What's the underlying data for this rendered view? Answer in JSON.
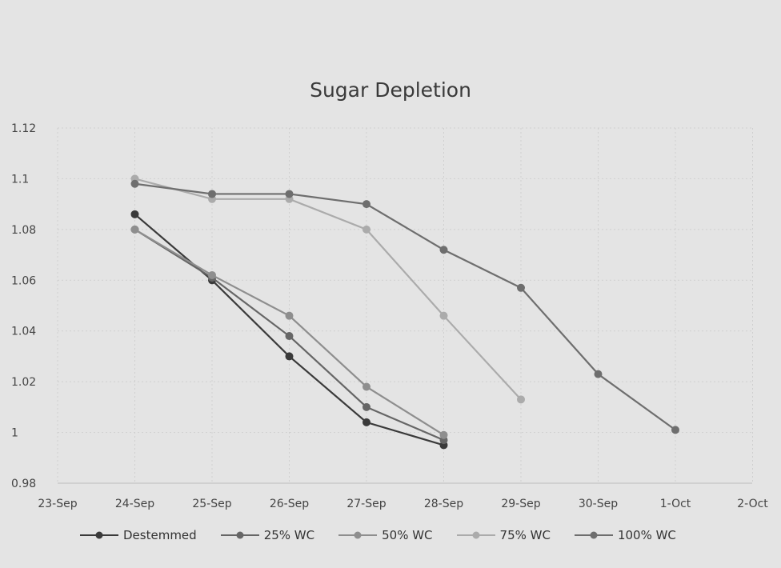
{
  "chart_data": {
    "type": "line",
    "title": "Sugar Depletion",
    "xlabel": "",
    "ylabel": "",
    "categories": [
      "23-Sep",
      "24-Sep",
      "25-Sep",
      "26-Sep",
      "27-Sep",
      "28-Sep",
      "29-Sep",
      "30-Sep",
      "1-Oct",
      "2-Oct"
    ],
    "y_ticks": [
      "0.98",
      "1",
      "1.02",
      "1.04",
      "1.06",
      "1.08",
      "1.1",
      "1.12"
    ],
    "ylim": [
      0.98,
      1.12
    ],
    "grid": true,
    "legend_position": "bottom",
    "series": [
      {
        "name": "Destemmed",
        "color": "#3a3a3a",
        "values": [
          null,
          1.086,
          1.06,
          1.03,
          1.004,
          0.995,
          null,
          null,
          null,
          null
        ]
      },
      {
        "name": "25% WC",
        "color": "#666666",
        "values": [
          null,
          1.08,
          1.061,
          1.038,
          1.01,
          0.997,
          null,
          null,
          null,
          null
        ]
      },
      {
        "name": "50% WC",
        "color": "#8e8e8e",
        "values": [
          null,
          1.08,
          1.062,
          1.046,
          1.018,
          0.999,
          null,
          null,
          null,
          null
        ]
      },
      {
        "name": "75% WC",
        "color": "#ababab",
        "values": [
          null,
          1.1,
          1.092,
          1.092,
          1.08,
          1.046,
          1.013,
          null,
          null,
          null
        ]
      },
      {
        "name": "100% WC",
        "color": "#6e6e6e",
        "values": [
          null,
          1.098,
          1.094,
          1.094,
          1.09,
          1.072,
          1.057,
          1.023,
          1.001,
          null
        ]
      }
    ]
  }
}
